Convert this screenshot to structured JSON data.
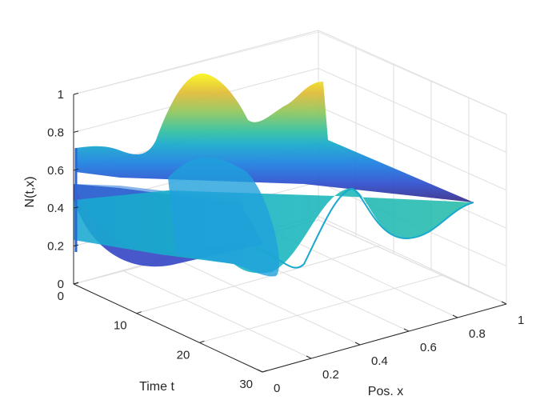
{
  "chart_data": {
    "type": "surface",
    "colormap": "parula",
    "grid": true,
    "box": "open 3D axes (back planes with grid)",
    "view": "3D perspective, t axis toward lower-left, x axis toward lower-right",
    "xlabel": "Pos. x",
    "ylabel": "Time t",
    "zlabel": "N(t,x)",
    "xlim": [
      0,
      1
    ],
    "ylim": [
      0,
      30
    ],
    "zlim": [
      0,
      1
    ],
    "x_ticks": [
      "0",
      "0.2",
      "0.4",
      "0.6",
      "0.8",
      "1"
    ],
    "y_ticks": [
      "0",
      "10",
      "20",
      "30"
    ],
    "z_ticks": [
      "0",
      "0.2",
      "0.4",
      "0.6",
      "0.8",
      "1"
    ],
    "surface_profiles": [
      {
        "t": 0,
        "x": [
          0,
          0.1,
          0.2,
          0.3,
          0.4,
          0.5,
          0.6,
          0.7,
          0.8,
          0.9,
          1.0
        ],
        "N": [
          0.72,
          0.73,
          0.7,
          0.55,
          0.6,
          0.82,
          0.96,
          0.72,
          0.7,
          0.82,
          0.84
        ]
      },
      {
        "t": 5,
        "x": [
          0,
          0.1,
          0.2,
          0.3,
          0.4,
          0.5,
          0.6,
          0.7,
          0.8,
          0.9,
          1.0
        ],
        "N": [
          0.18,
          0.12,
          0.08,
          0.08,
          0.14,
          0.22,
          0.25,
          0.2,
          0.18,
          0.22,
          0.28
        ]
      },
      {
        "t": 12,
        "x": [
          0,
          0.1,
          0.2,
          0.3,
          0.4,
          0.5,
          0.6,
          0.7,
          0.8,
          0.9,
          1.0
        ],
        "N": [
          0.45,
          0.44,
          0.42,
          0.4,
          0.38,
          0.37,
          0.38,
          0.4,
          0.42,
          0.44,
          0.45
        ]
      },
      {
        "t": 20,
        "x": [
          0,
          0.1,
          0.2,
          0.3,
          0.4,
          0.5,
          0.6,
          0.7,
          0.8,
          0.9,
          1.0
        ],
        "N": [
          0.62,
          0.6,
          0.52,
          0.4,
          0.3,
          0.28,
          0.36,
          0.5,
          0.58,
          0.55,
          0.52
        ]
      },
      {
        "t": 30,
        "x": [
          0,
          0.1,
          0.2,
          0.3,
          0.4,
          0.5,
          0.6,
          0.7,
          0.8,
          0.9,
          1.0
        ],
        "N": [
          0.72,
          0.66,
          0.52,
          0.36,
          0.25,
          0.3,
          0.45,
          0.56,
          0.58,
          0.52,
          0.5
        ]
      }
    ]
  }
}
